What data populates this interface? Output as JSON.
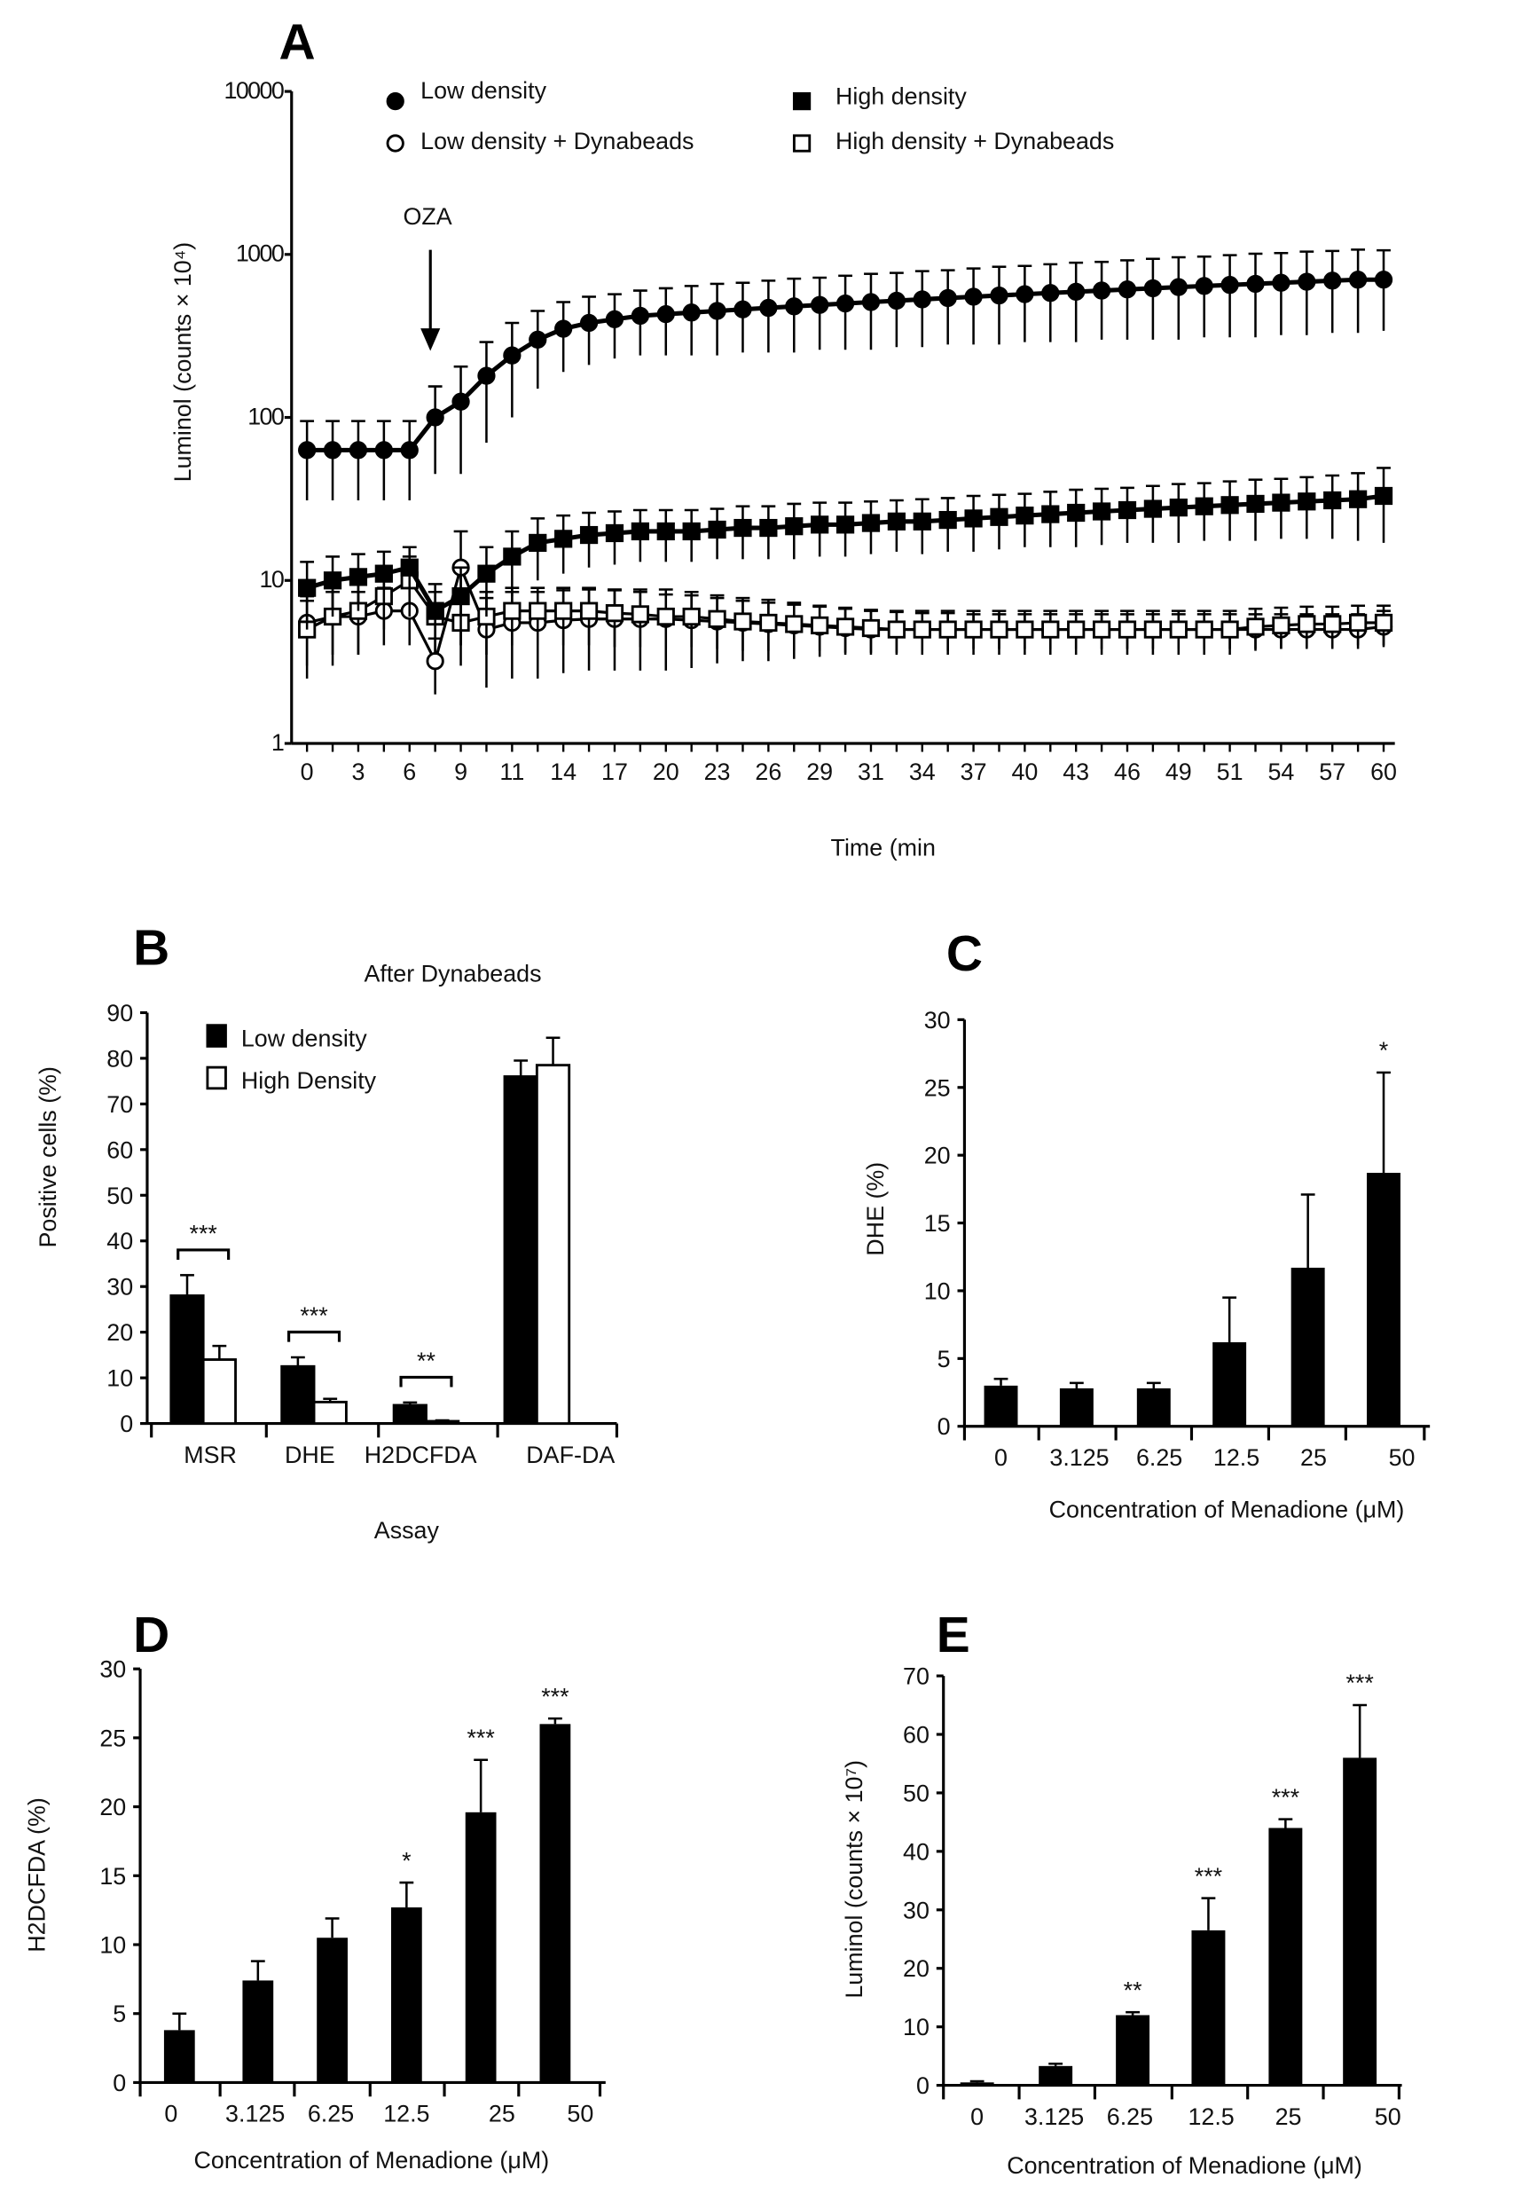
{
  "chart_data": [
    {
      "panel": "A",
      "type": "line",
      "xlabel": "Time (min",
      "ylabel": "Luminol (counts × 10⁴)",
      "yscale": "log",
      "ylim": [
        1,
        10000
      ],
      "yticks": [
        "1",
        "10",
        "100",
        "1000",
        "10000"
      ],
      "xtick_labels": [
        "0",
        "3",
        "6",
        "9",
        "11",
        "14",
        "17",
        "20",
        "23",
        "26",
        "29",
        "31",
        "34",
        "37",
        "40",
        "43",
        "46",
        "49",
        "51",
        "54",
        "57",
        "60"
      ],
      "annotation": "OZA",
      "series": [
        {
          "name": "Low density",
          "marker": "filled-circle",
          "values": [
            63,
            63,
            63,
            63,
            63,
            100,
            125,
            180,
            240,
            300,
            350,
            380,
            400,
            420,
            430,
            440,
            450,
            460,
            470,
            480,
            490,
            500,
            510,
            520,
            530,
            540,
            550,
            560,
            570,
            580,
            590,
            600,
            610,
            620,
            630,
            640,
            650,
            660,
            670,
            680,
            690,
            700,
            700
          ],
          "err": [
            32,
            32,
            32,
            32,
            32,
            55,
            80,
            110,
            140,
            150,
            160,
            170,
            170,
            180,
            190,
            200,
            210,
            210,
            220,
            230,
            230,
            240,
            250,
            250,
            260,
            260,
            270,
            280,
            280,
            290,
            300,
            300,
            310,
            320,
            330,
            330,
            340,
            350,
            350,
            360,
            360,
            370,
            360
          ]
        },
        {
          "name": "High density",
          "marker": "filled-square",
          "values": [
            9,
            10,
            10.5,
            11,
            12,
            6.5,
            8,
            11,
            14,
            17,
            18,
            19,
            19.5,
            20,
            20,
            20,
            20.5,
            21,
            21,
            21.5,
            22,
            22,
            22.5,
            23,
            23,
            23.5,
            24,
            24.5,
            25,
            25.5,
            26,
            26.5,
            27,
            27.5,
            28,
            28.5,
            29,
            29.5,
            30,
            30.5,
            31,
            31.5,
            33
          ],
          "err": [
            4,
            4,
            4,
            4,
            4,
            3,
            4,
            5,
            6,
            7,
            7,
            7,
            7,
            7,
            7,
            7,
            7,
            7.5,
            7.5,
            8,
            8,
            8,
            8,
            8,
            8.5,
            8.5,
            9,
            9,
            9,
            9.5,
            10,
            10,
            10,
            10.5,
            11,
            11,
            11.5,
            12,
            12,
            12.5,
            13,
            14,
            16
          ]
        },
        {
          "name": "Low density + Dynabeads",
          "marker": "open-circle",
          "values": [
            5.5,
            6,
            6,
            6.5,
            6.5,
            3.2,
            12,
            5,
            5.5,
            5.5,
            5.7,
            5.8,
            5.8,
            5.8,
            5.8,
            5.7,
            5.6,
            5.5,
            5.4,
            5.3,
            5.2,
            5.1,
            5,
            5,
            5,
            5,
            5,
            5,
            5,
            5,
            5,
            5,
            5,
            5,
            5,
            5,
            5,
            5,
            5,
            5,
            5,
            5,
            5.2
          ],
          "err": [
            2.5,
            2.5,
            2.5,
            2.5,
            2.5,
            1.2,
            8,
            2.8,
            3,
            3,
            3,
            3,
            3,
            3,
            3,
            2.8,
            2.5,
            2.3,
            2.2,
            2,
            1.8,
            1.6,
            1.5,
            1.4,
            1.3,
            1.3,
            1.2,
            1.2,
            1.2,
            1.2,
            1.2,
            1.2,
            1.2,
            1.2,
            1.2,
            1.2,
            1.2,
            1.2,
            1.2,
            1.2,
            1.2,
            1.2,
            1.3
          ]
        },
        {
          "name": "High density + Dynabeads",
          "marker": "open-square",
          "values": [
            5,
            6,
            6.5,
            8,
            10,
            6,
            5.5,
            6,
            6.5,
            6.5,
            6.5,
            6.5,
            6.3,
            6.2,
            6,
            6,
            5.8,
            5.6,
            5.5,
            5.4,
            5.3,
            5.2,
            5.1,
            5,
            5,
            5,
            5,
            5,
            5,
            5,
            5,
            5,
            5,
            5,
            5,
            5,
            5,
            5.2,
            5.3,
            5.4,
            5.4,
            5.5,
            5.5
          ],
          "err": [
            2.5,
            3,
            3,
            3,
            4,
            2.5,
            2.5,
            2.5,
            2.5,
            2.5,
            2.5,
            2.5,
            2.4,
            2.3,
            2.2,
            2.1,
            2,
            1.9,
            1.8,
            1.7,
            1.6,
            1.6,
            1.5,
            1.5,
            1.5,
            1.5,
            1.5,
            1.5,
            1.5,
            1.5,
            1.5,
            1.5,
            1.5,
            1.5,
            1.5,
            1.5,
            1.5,
            1.5,
            1.5,
            1.5,
            1.5,
            1.5,
            1.5
          ]
        }
      ]
    },
    {
      "panel": "B",
      "type": "bar",
      "title": "After Dynabeads",
      "xlabel": "Assay",
      "ylabel": "Positive cells (%)",
      "ylim": [
        0,
        90
      ],
      "yticks": [
        "0",
        "10",
        "20",
        "30",
        "40",
        "50",
        "60",
        "70",
        "80",
        "90"
      ],
      "categories": [
        "MSR",
        "DHE",
        "H2DCFDA",
        "DAF-DA"
      ],
      "series": [
        {
          "name": "Low density",
          "fill": "#000000",
          "values": [
            28,
            12.5,
            4,
            76
          ],
          "err": [
            4.5,
            2,
            0.6,
            3.5
          ]
        },
        {
          "name": "High Density",
          "fill": "#ffffff",
          "values": [
            14,
            4.7,
            0.5,
            78.5
          ],
          "err": [
            3,
            0.7,
            0.2,
            6
          ]
        }
      ],
      "significance": [
        "***",
        "***",
        "**",
        ""
      ]
    },
    {
      "panel": "C",
      "type": "bar",
      "xlabel": "Concentration of Menadione (μM)",
      "ylabel": "DHE (%)",
      "ylim": [
        0,
        30
      ],
      "yticks": [
        "0",
        "5",
        "10",
        "15",
        "20",
        "25",
        "30"
      ],
      "categories": [
        "0",
        "3.125",
        "6.25",
        "12.5",
        "25",
        "50"
      ],
      "values": [
        3,
        2.8,
        2.8,
        6.2,
        11.7,
        18.7
      ],
      "err": [
        0.5,
        0.4,
        0.4,
        3.3,
        5.4,
        7.4
      ],
      "significance": [
        "",
        "",
        "",
        "",
        "",
        "*"
      ]
    },
    {
      "panel": "D",
      "type": "bar",
      "xlabel": "Concentration of Menadione (μM)",
      "ylabel": "H2DCFDA (%)",
      "ylim": [
        0,
        30
      ],
      "yticks": [
        "0",
        "5",
        "10",
        "15",
        "20",
        "25",
        "30"
      ],
      "categories": [
        "0",
        "3.125",
        "6.25",
        "12.5",
        "25",
        "50"
      ],
      "values": [
        3.8,
        7.4,
        10.5,
        12.7,
        19.6,
        26
      ],
      "err": [
        1.2,
        1.4,
        1.4,
        1.8,
        3.8,
        0.4
      ],
      "significance": [
        "",
        "",
        "",
        "*",
        "***",
        "***"
      ]
    },
    {
      "panel": "E",
      "type": "bar",
      "xlabel": "Concentration of Menadione (μM)",
      "ylabel": "Luminol  (counts × 10⁷)",
      "ylim": [
        0,
        70
      ],
      "yticks": [
        "0",
        "10",
        "20",
        "30",
        "40",
        "50",
        "60",
        "70"
      ],
      "categories": [
        "0",
        "3.125",
        "6.25",
        "12.5",
        "25",
        "50"
      ],
      "values": [
        0.5,
        3.3,
        12,
        26.5,
        44,
        56
      ],
      "err": [
        0.2,
        0.4,
        0.5,
        5.5,
        1.5,
        9
      ],
      "significance": [
        "",
        "",
        "**",
        "***",
        "***",
        "***"
      ]
    }
  ]
}
